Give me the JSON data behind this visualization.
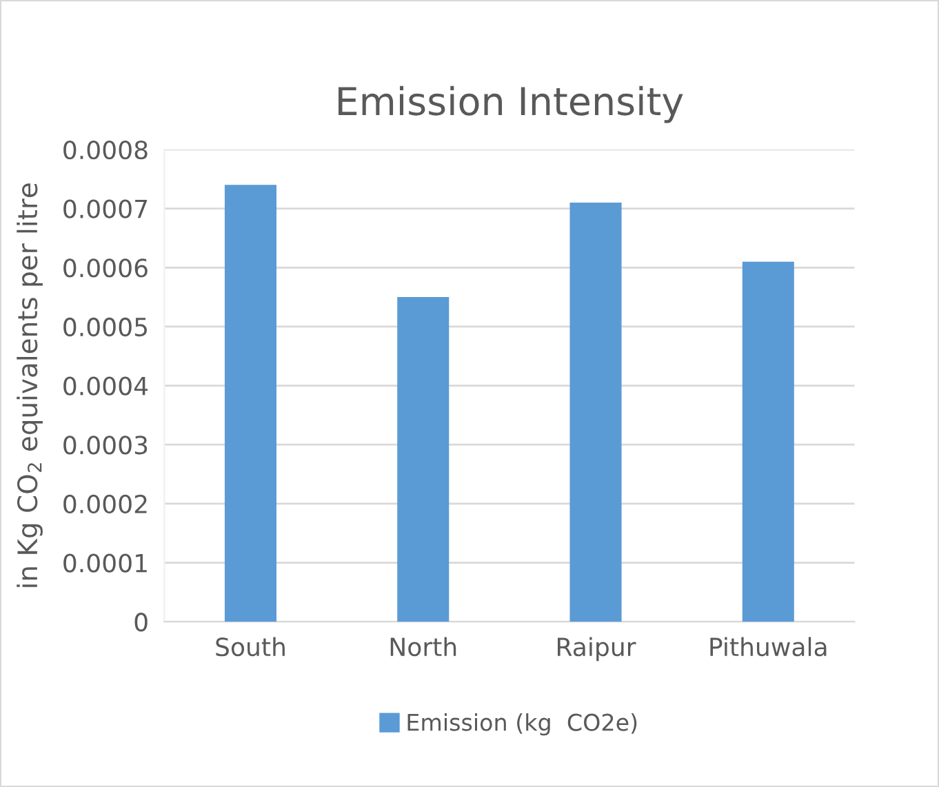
{
  "chart_data": {
    "type": "bar",
    "title": "Emission Intensity",
    "ylabel": "in Kg CO$_{2}$ equivalents per litre",
    "categories": [
      "South",
      "North",
      "Raipur",
      "Pithuwala"
    ],
    "series": [
      {
        "name": "Emission (kg  CO2e)",
        "color": "#5b9bd5",
        "values": [
          0.00074,
          0.00055,
          0.00071,
          0.00061
        ]
      }
    ],
    "ylim": [
      0,
      0.0008
    ],
    "yticks": [
      0,
      0.0001,
      0.0002,
      0.0003,
      0.0004,
      0.0005,
      0.0006,
      0.0007,
      0.0008
    ],
    "grid": "y",
    "legend": "bottom"
  }
}
